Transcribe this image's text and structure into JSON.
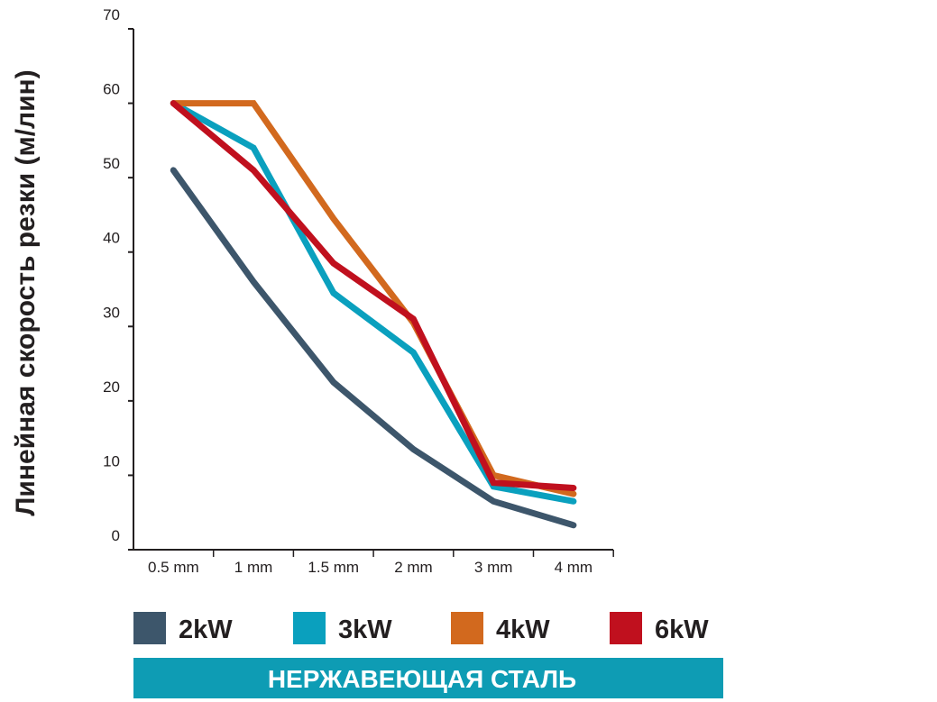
{
  "chart_data": {
    "type": "line",
    "categories": [
      "0.5 mm",
      "1 mm",
      "1.5 mm",
      "2 mm",
      "3 mm",
      "4 mm"
    ],
    "ylabel": "Линейная скорость резки (м/лин)",
    "ylim": [
      0,
      70
    ],
    "yticks": [
      0,
      10,
      20,
      30,
      40,
      50,
      60,
      70
    ],
    "grid": false,
    "legend_position": "bottom",
    "series": [
      {
        "name": "2kW",
        "color": "#3d566b",
        "values": [
          51,
          36,
          22.5,
          13.5,
          6.5,
          3.3
        ]
      },
      {
        "name": "3kW",
        "color": "#0aa0be",
        "values": [
          60,
          54,
          34.5,
          26.5,
          8.5,
          6.5
        ]
      },
      {
        "name": "4kW",
        "color": "#d2691e",
        "values": [
          60,
          60,
          44.5,
          30.5,
          10,
          7.5
        ]
      },
      {
        "name": "6kW",
        "color": "#c0101e",
        "values": [
          60,
          51,
          38.5,
          31,
          9,
          8.3
        ]
      }
    ]
  },
  "banner": {
    "text": "НЕРЖАВЕЮЩАЯ СТАЛЬ",
    "color": "#0e9cb4"
  }
}
